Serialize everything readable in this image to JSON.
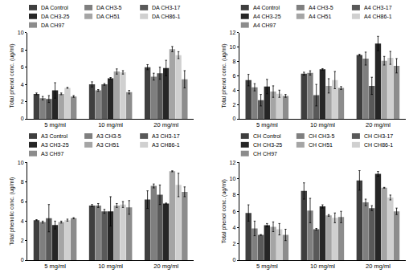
{
  "chart_data": [
    {
      "type": "bar",
      "y_label": "Total phenol conc. (ug/ml)",
      "categories": [
        "5 mg/ml",
        "10 mg/ml",
        "20 mg/ml"
      ],
      "ylim": [
        0,
        10
      ],
      "yticks": [
        0,
        2,
        4,
        6,
        8,
        10
      ],
      "grid": false,
      "series": [
        {
          "name": "DA Control",
          "color": "#3f3f3f",
          "values": [
            2.9,
            4.0,
            6.0
          ],
          "errors": [
            0.1,
            0.3,
            0.3
          ]
        },
        {
          "name": "DA CH3-5",
          "color": "#7f7f7f",
          "values": [
            2.4,
            3.3,
            4.9
          ],
          "errors": [
            0.2,
            0.1,
            0.4
          ]
        },
        {
          "name": "DA CH3-17",
          "color": "#595959",
          "values": [
            2.3,
            4.0,
            5.3
          ],
          "errors": [
            0.4,
            0.1,
            0.7
          ]
        },
        {
          "name": "DA CH3-25",
          "color": "#262626",
          "values": [
            3.3,
            4.7,
            5.9
          ],
          "errors": [
            0.9,
            0.1,
            0.9
          ]
        },
        {
          "name": "DA CH51",
          "color": "#a5a5a5",
          "values": [
            2.9,
            5.5,
            8.1
          ],
          "errors": [
            0.1,
            0.3,
            0.3
          ]
        },
        {
          "name": "DA CH86-1",
          "color": "#d0d0d0",
          "values": [
            3.6,
            5.4,
            7.4
          ],
          "errors": [
            0.05,
            0.2,
            0.4
          ]
        },
        {
          "name": "DA CH97",
          "color": "#8c8c8c",
          "values": [
            2.6,
            3.1,
            4.6
          ],
          "errors": [
            0.1,
            0.2,
            1.0
          ]
        }
      ]
    },
    {
      "type": "bar",
      "y_label": "Total phenol conc. (ug/ml)",
      "categories": [
        "5 mg/ml",
        "10 mg/ml",
        "20 mg/ml"
      ],
      "ylim": [
        0,
        12
      ],
      "yticks": [
        0,
        2,
        4,
        6,
        8,
        10,
        12
      ],
      "grid": false,
      "series": [
        {
          "name": "A4 Control",
          "color": "#3f3f3f",
          "values": [
            5.4,
            6.3,
            8.9
          ],
          "errors": [
            0.8,
            0.2,
            0.1
          ]
        },
        {
          "name": "A4 CH3-5",
          "color": "#7f7f7f",
          "values": [
            4.4,
            6.4,
            8.4
          ],
          "errors": [
            0.5,
            0.3,
            0.9
          ]
        },
        {
          "name": "A4 CH3-17",
          "color": "#595959",
          "values": [
            2.6,
            3.3,
            4.6
          ],
          "errors": [
            0.8,
            1.5,
            1.2
          ]
        },
        {
          "name": "A4 CH3-25",
          "color": "#262626",
          "values": [
            4.5,
            6.9,
            10.5
          ],
          "errors": [
            1.0,
            0.1,
            1.0
          ]
        },
        {
          "name": "A4 CH51",
          "color": "#a5a5a5",
          "values": [
            3.8,
            4.6,
            8.1
          ],
          "errors": [
            0.8,
            1.0,
            0.6
          ]
        },
        {
          "name": "A4 CH86-1",
          "color": "#d0d0d0",
          "values": [
            3.5,
            5.4,
            8.5
          ],
          "errors": [
            0.5,
            1.2,
            0.9
          ]
        },
        {
          "name": "A4 CH97",
          "color": "#8c8c8c",
          "values": [
            3.2,
            4.3,
            7.4
          ],
          "errors": [
            0.2,
            0.2,
            1.0
          ]
        }
      ]
    },
    {
      "type": "bar",
      "y_label": "Total phenolic conc. (ug/ml)",
      "categories": [
        "5 mg/ml",
        "10 mg/ml",
        "20 mg/ml"
      ],
      "ylim": [
        0,
        10
      ],
      "yticks": [
        0,
        2,
        4,
        6,
        8,
        10
      ],
      "grid": false,
      "series": [
        {
          "name": "A3 Control",
          "color": "#3f3f3f",
          "values": [
            4.1,
            5.6,
            6.2
          ],
          "errors": [
            0.05,
            0.1,
            0.9
          ]
        },
        {
          "name": "A3 CH3-5",
          "color": "#7f7f7f",
          "values": [
            3.9,
            5.6,
            7.6
          ],
          "errors": [
            0.1,
            0.2,
            0.2
          ]
        },
        {
          "name": "A3 CH3-17",
          "color": "#595959",
          "values": [
            4.3,
            5.0,
            6.7
          ],
          "errors": [
            1.4,
            0.2,
            1.0
          ]
        },
        {
          "name": "A3 CH3-25",
          "color": "#262626",
          "values": [
            3.6,
            5.0,
            5.8
          ],
          "errors": [
            0.4,
            1.5,
            0.05
          ]
        },
        {
          "name": "A3 CH51",
          "color": "#a5a5a5",
          "values": [
            3.9,
            5.6,
            9.1
          ],
          "errors": [
            0.1,
            0.2,
            0.05
          ]
        },
        {
          "name": "A3 CH86-1",
          "color": "#d0d0d0",
          "values": [
            4.1,
            5.7,
            7.7
          ],
          "errors": [
            0.1,
            0.3,
            1.2
          ]
        },
        {
          "name": "A3 CH97",
          "color": "#8c8c8c",
          "values": [
            4.3,
            5.4,
            7.0
          ],
          "errors": [
            0.05,
            0.7,
            0.5
          ]
        }
      ]
    },
    {
      "type": "bar",
      "y_label": "Total phenol conc. (ug/ml)",
      "categories": [
        "5 mg/ml",
        "10 mg/ml",
        "20 mg/ml"
      ],
      "ylim": [
        0,
        12
      ],
      "yticks": [
        0,
        2,
        4,
        6,
        8,
        10,
        12
      ],
      "grid": false,
      "series": [
        {
          "name": "CH Control",
          "color": "#3f3f3f",
          "values": [
            5.8,
            8.5,
            9.8
          ],
          "errors": [
            1.0,
            1.0,
            1.2
          ]
        },
        {
          "name": "CH CH3-5",
          "color": "#7f7f7f",
          "values": [
            3.9,
            6.1,
            7.1
          ],
          "errors": [
            0.9,
            1.5,
            0.4
          ]
        },
        {
          "name": "CH CH3-17",
          "color": "#595959",
          "values": [
            3.1,
            3.8,
            6.4
          ],
          "errors": [
            0.05,
            0.1,
            0.3
          ]
        },
        {
          "name": "CH CH3-25",
          "color": "#262626",
          "values": [
            4.3,
            6.6,
            10.6
          ],
          "errors": [
            0.2,
            0.2,
            0.3
          ]
        },
        {
          "name": "CH CH51",
          "color": "#a5a5a5",
          "values": [
            4.1,
            5.5,
            8.9
          ],
          "errors": [
            0.6,
            0.1,
            0.05
          ]
        },
        {
          "name": "CH CH86-1",
          "color": "#d0d0d0",
          "values": [
            3.8,
            5.2,
            7.7
          ],
          "errors": [
            0.7,
            0.6,
            0.3
          ]
        },
        {
          "name": "CH CH97",
          "color": "#8c8c8c",
          "values": [
            3.1,
            5.3,
            6.0
          ],
          "errors": [
            0.7,
            0.7,
            0.4
          ]
        }
      ]
    }
  ]
}
